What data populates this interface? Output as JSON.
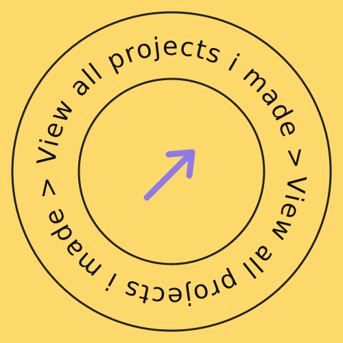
{
  "badge": {
    "circular_text": "View all projects i made > View all projects i made > ",
    "link_label": "View all projects i made",
    "icon": "arrow-up-right-icon",
    "colors": {
      "background": "#FCD96A",
      "ring_stroke": "#222222",
      "text": "#111111",
      "arrow": "#8E7BE8"
    }
  }
}
